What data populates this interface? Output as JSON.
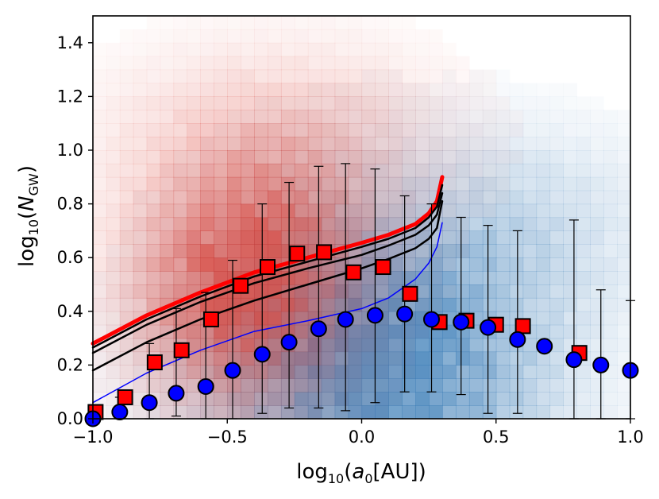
{
  "chart_data": {
    "type": "scatter",
    "title": "",
    "xlabel": {
      "prefix": "log",
      "sub": "10",
      "open": "(",
      "var": "a",
      "var_sub": "0",
      "unit": "[AU])"
    },
    "ylabel": {
      "prefix": "log",
      "sub": "10",
      "open": "(",
      "var": "N",
      "var_sub": "GW",
      "close": ")"
    },
    "xlim": [
      -1.0,
      1.0
    ],
    "ylim": [
      0.0,
      1.5
    ],
    "xticks": [
      -1.0,
      -0.5,
      0.0,
      0.5,
      1.0
    ],
    "xtick_labels": [
      "−1.0",
      "−0.5",
      "0.0",
      "0.5",
      "1.0"
    ],
    "yticks": [
      0.0,
      0.2,
      0.4,
      0.6,
      0.8,
      1.0,
      1.2,
      1.4
    ],
    "ytick_labels": [
      "0.0",
      "0.2",
      "0.4",
      "0.6",
      "0.8",
      "1.0",
      "1.2",
      "1.4"
    ],
    "grid": false,
    "colors": {
      "red_marker": "#ff0000",
      "blue_marker": "#0000ff",
      "red_line": "#ff0000",
      "black_line": "#000000",
      "blue_line": "#0000ff",
      "red_hist": "#d93a2f",
      "blue_hist": "#3f7fb8"
    },
    "series": [
      {
        "name": "red squares",
        "marker": "square",
        "x": [
          -0.99,
          -0.88,
          -0.77,
          -0.67,
          -0.56,
          -0.45,
          -0.35,
          -0.24,
          -0.14,
          -0.03,
          0.08,
          0.18,
          0.29,
          0.39,
          0.5,
          0.6,
          0.81
        ],
        "y": [
          0.025,
          0.08,
          0.21,
          0.255,
          0.37,
          0.495,
          0.565,
          0.615,
          0.62,
          0.545,
          0.565,
          0.465,
          0.36,
          0.365,
          0.35,
          0.345,
          0.245
        ],
        "err_up": [
          0.0,
          0.0,
          0.0,
          0.0,
          0.0,
          0.0,
          0.0,
          0.0,
          0.0,
          0.0,
          0.0,
          0.0,
          0.0,
          0.0,
          0.0,
          0.0,
          0.0
        ],
        "err_low": [
          0.0,
          0.0,
          0.0,
          0.0,
          0.0,
          0.0,
          0.0,
          0.0,
          0.0,
          0.0,
          0.0,
          0.0,
          0.0,
          0.0,
          0.0,
          0.0,
          0.0
        ]
      },
      {
        "name": "blue circles",
        "marker": "circle",
        "x": [
          -1.0,
          -0.9,
          -0.79,
          -0.69,
          -0.58,
          -0.48,
          -0.37,
          -0.27,
          -0.16,
          -0.06,
          0.05,
          0.16,
          0.26,
          0.37,
          0.47,
          0.58,
          0.68,
          0.79,
          0.89,
          1.0
        ],
        "y": [
          0.0,
          0.025,
          0.06,
          0.095,
          0.12,
          0.18,
          0.24,
          0.285,
          0.335,
          0.37,
          0.385,
          0.39,
          0.37,
          0.36,
          0.34,
          0.295,
          0.27,
          0.22,
          0.2,
          0.18
        ],
        "err_upper_value": [
          0.0,
          0.08,
          0.28,
          0.41,
          0.47,
          0.59,
          0.8,
          0.88,
          0.94,
          0.95,
          0.93,
          0.83,
          0.8,
          0.75,
          0.72,
          0.7,
          0.0,
          0.74,
          0.48,
          0.44
        ],
        "err_lower_value": [
          0.0,
          0.0,
          0.0,
          0.01,
          0.0,
          0.0,
          0.02,
          0.04,
          0.04,
          0.03,
          0.06,
          0.1,
          0.1,
          0.09,
          0.02,
          0.02,
          0.04,
          0.0,
          0.0,
          0.0
        ]
      }
    ],
    "lines": [
      {
        "name": "red thick",
        "color": "#ff0000",
        "width": 5,
        "points": [
          [
            -1.0,
            0.28
          ],
          [
            -0.8,
            0.385
          ],
          [
            -0.6,
            0.47
          ],
          [
            -0.4,
            0.545
          ],
          [
            -0.2,
            0.6
          ],
          [
            0.0,
            0.655
          ],
          [
            0.1,
            0.685
          ],
          [
            0.2,
            0.725
          ],
          [
            0.25,
            0.765
          ],
          [
            0.28,
            0.81
          ],
          [
            0.3,
            0.9
          ]
        ]
      },
      {
        "name": "black 1",
        "color": "#000000",
        "width": 2.5,
        "points": [
          [
            -1.0,
            0.265
          ],
          [
            -0.8,
            0.37
          ],
          [
            -0.6,
            0.455
          ],
          [
            -0.4,
            0.53
          ],
          [
            -0.2,
            0.585
          ],
          [
            0.0,
            0.64
          ],
          [
            0.1,
            0.67
          ],
          [
            0.2,
            0.71
          ],
          [
            0.25,
            0.75
          ],
          [
            0.28,
            0.79
          ],
          [
            0.3,
            0.87
          ]
        ]
      },
      {
        "name": "black 2",
        "color": "#000000",
        "width": 2.5,
        "points": [
          [
            -1.0,
            0.245
          ],
          [
            -0.8,
            0.35
          ],
          [
            -0.6,
            0.435
          ],
          [
            -0.4,
            0.505
          ],
          [
            -0.2,
            0.56
          ],
          [
            0.0,
            0.61
          ],
          [
            0.1,
            0.645
          ],
          [
            0.2,
            0.685
          ],
          [
            0.25,
            0.72
          ],
          [
            0.28,
            0.76
          ],
          [
            0.3,
            0.84
          ]
        ]
      },
      {
        "name": "black 3",
        "color": "#000000",
        "width": 2.5,
        "points": [
          [
            -1.0,
            0.18
          ],
          [
            -0.8,
            0.285
          ],
          [
            -0.6,
            0.37
          ],
          [
            -0.4,
            0.44
          ],
          [
            -0.2,
            0.5
          ],
          [
            0.0,
            0.56
          ],
          [
            0.1,
            0.595
          ],
          [
            0.2,
            0.635
          ],
          [
            0.25,
            0.67
          ],
          [
            0.28,
            0.71
          ],
          [
            0.3,
            0.81
          ]
        ]
      },
      {
        "name": "blue thin",
        "color": "#0000ff",
        "width": 1.5,
        "points": [
          [
            -1.0,
            0.06
          ],
          [
            -0.8,
            0.17
          ],
          [
            -0.6,
            0.255
          ],
          [
            -0.4,
            0.325
          ],
          [
            -0.2,
            0.365
          ],
          [
            0.0,
            0.41
          ],
          [
            0.1,
            0.45
          ],
          [
            0.2,
            0.52
          ],
          [
            0.25,
            0.58
          ],
          [
            0.28,
            0.64
          ],
          [
            0.3,
            0.73
          ]
        ]
      }
    ]
  }
}
